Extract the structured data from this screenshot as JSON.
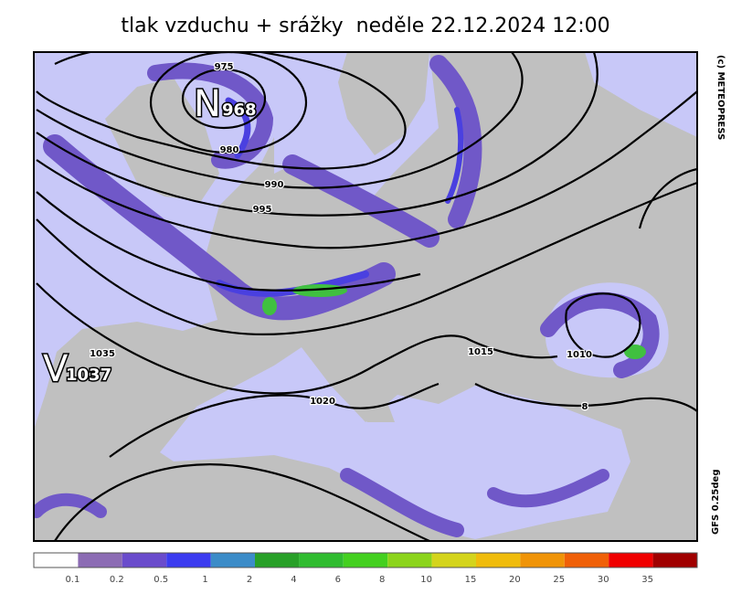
{
  "title": "tlak vzduchu + srážky  neděle 22.12.2024 12:00",
  "credits": {
    "copyright": "(c) METEOPRESS",
    "model": "GFS 0.25deg"
  },
  "pressure_centers": [
    {
      "letter": "N",
      "value": "968"
    },
    {
      "letter": "V",
      "value": "1037"
    }
  ],
  "isobar_labels": [
    "975",
    "980",
    "990",
    "995",
    "1035",
    "1015",
    "1010",
    "1020",
    "8"
  ],
  "legend": {
    "colors": [
      "#ffffff",
      "#8c6cb4",
      "#6a4ccc",
      "#3c3cf0",
      "#3c8cc8",
      "#28a028",
      "#30bc30",
      "#44d020",
      "#8cd41c",
      "#d4d41c",
      "#f0bc0c",
      "#f09408",
      "#f06008",
      "#f00000",
      "#a00000"
    ],
    "labels": [
      "0.1",
      "0.2",
      "0.5",
      "1",
      "2",
      "4",
      "6",
      "8",
      "10",
      "15",
      "20",
      "25",
      "30",
      "35"
    ]
  }
}
